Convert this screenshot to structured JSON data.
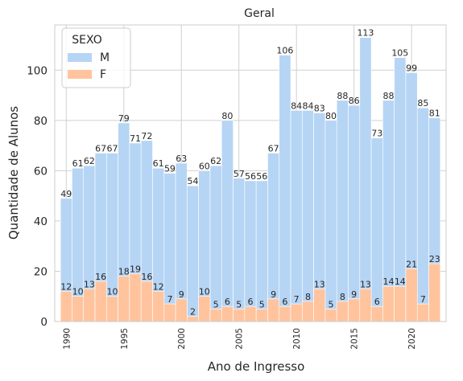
{
  "chart_data": {
    "type": "bar",
    "stacking": "overlay",
    "title": "Geral",
    "xlabel": "Ano de Ingresso",
    "ylabel": "Quantidade de Alunos",
    "xlim": [
      1989,
      2023
    ],
    "ylim": [
      0,
      118
    ],
    "grid": true,
    "x_ticks": [
      1990,
      1995,
      2000,
      2005,
      2010,
      2015,
      2020
    ],
    "y_ticks": [
      0,
      20,
      40,
      60,
      80,
      100
    ],
    "legend": {
      "title": "SEXO",
      "position": "top-left"
    },
    "years": [
      1990,
      1991,
      1992,
      1993,
      1994,
      1995,
      1996,
      1997,
      1998,
      1999,
      2000,
      2001,
      2002,
      2003,
      2004,
      2005,
      2006,
      2007,
      2008,
      2009,
      2010,
      2011,
      2012,
      2013,
      2014,
      2015,
      2016,
      2017,
      2018,
      2019,
      2020,
      2021,
      2022
    ],
    "series": [
      {
        "name": "M",
        "color": "#b6d5f5",
        "values": [
          49,
          61,
          62,
          67,
          67,
          79,
          71,
          72,
          61,
          59,
          63,
          54,
          60,
          62,
          80,
          57,
          56,
          56,
          67,
          106,
          84,
          84,
          83,
          80,
          88,
          86,
          113,
          73,
          88,
          105,
          99,
          85,
          81
        ]
      },
      {
        "name": "F",
        "color": "#ffc49e",
        "values": [
          12,
          10,
          13,
          16,
          10,
          18,
          19,
          16,
          12,
          7,
          9,
          2,
          10,
          5,
          6,
          5,
          6,
          5,
          9,
          6,
          7,
          8,
          13,
          5,
          8,
          9,
          13,
          6,
          14,
          14,
          21,
          7,
          23
        ]
      }
    ]
  }
}
